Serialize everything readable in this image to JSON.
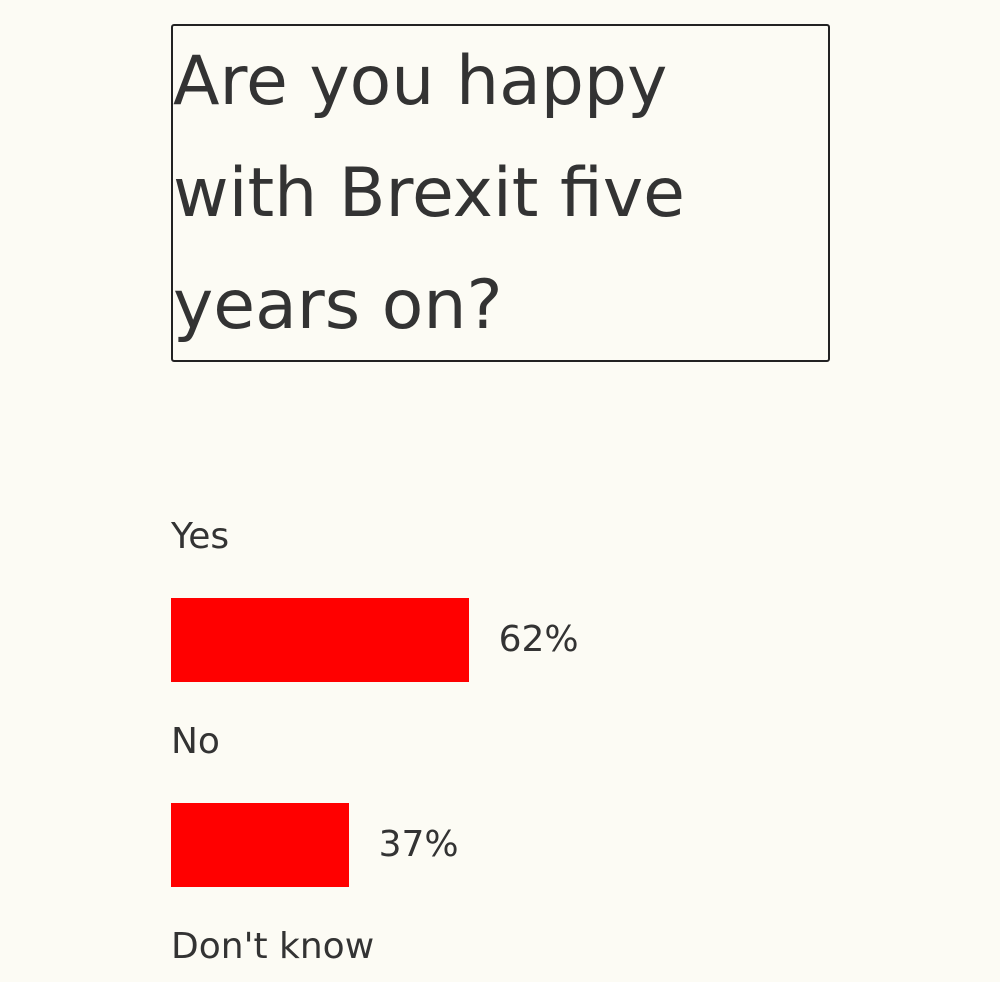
{
  "chart_data": {
    "type": "bar",
    "orientation": "horizontal",
    "title": "Are you happy with Brexit five years on?",
    "categories": [
      "Yes",
      "No",
      "Don't know"
    ],
    "values": [
      62,
      37,
      null
    ],
    "value_labels": [
      "62%",
      "37%",
      null
    ],
    "color": "#ff0000",
    "xlim": [
      0,
      100
    ]
  }
}
